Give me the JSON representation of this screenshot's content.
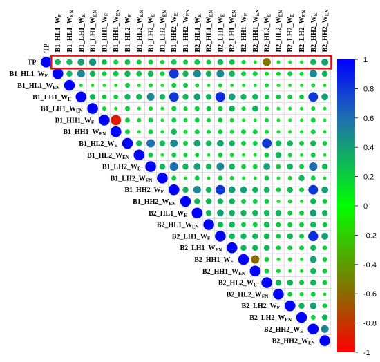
{
  "chart_data": {
    "type": "heatmap",
    "variables": [
      {
        "base": "TP",
        "sub": ""
      },
      {
        "base": "B1_HL1_W",
        "sub": "E"
      },
      {
        "base": "B1_HL1_W",
        "sub": "EN"
      },
      {
        "base": "B1_LH1_W",
        "sub": "E"
      },
      {
        "base": "B1_LH1_W",
        "sub": "EN"
      },
      {
        "base": "B1_HH1_W",
        "sub": "E"
      },
      {
        "base": "B1_HH1_W",
        "sub": "EN"
      },
      {
        "base": "B1_HL2_W",
        "sub": "E"
      },
      {
        "base": "B1_HL2_W",
        "sub": "EN"
      },
      {
        "base": "B1_LH2_W",
        "sub": "E"
      },
      {
        "base": "B1_LH2_W",
        "sub": "EN"
      },
      {
        "base": "B1_HH2_W",
        "sub": "E"
      },
      {
        "base": "B1_HH2_W",
        "sub": "EN"
      },
      {
        "base": "B2_HL1_W",
        "sub": "E"
      },
      {
        "base": "B2_HL1_W",
        "sub": "EN"
      },
      {
        "base": "B2_LH1_W",
        "sub": "E"
      },
      {
        "base": "B2_LH1_W",
        "sub": "EN"
      },
      {
        "base": "B2_HH1_W",
        "sub": "E"
      },
      {
        "base": "B2_HH1_W",
        "sub": "EN"
      },
      {
        "base": "B2_HL2_W",
        "sub": "E"
      },
      {
        "base": "B2_HL2_W",
        "sub": "EN"
      },
      {
        "base": "B2_LH2_W",
        "sub": "E"
      },
      {
        "base": "B2_LH2_W",
        "sub": "EN"
      },
      {
        "base": "B2_HH2_W",
        "sub": "E"
      },
      {
        "base": "B2_HH2_W",
        "sub": "EN"
      }
    ],
    "matrix": [
      [
        1,
        0.3,
        0.3,
        0.4,
        0.45,
        0.25,
        0.2,
        0.25,
        0.2,
        0.2,
        0.15,
        0.25,
        0.2,
        0.25,
        0.2,
        0.3,
        0.25,
        0.15,
        0.1,
        -0.55,
        0.1,
        0.1,
        0.1,
        0.3,
        0.4
      ],
      [
        0.3,
        1,
        0.3,
        0.5,
        0.3,
        0.2,
        0.25,
        0.3,
        0.25,
        0.3,
        0.2,
        0.8,
        0.3,
        0.5,
        0.3,
        0.5,
        0.3,
        0.2,
        0.2,
        0.15,
        0.15,
        0.2,
        0.15,
        0.5,
        0.3
      ],
      [
        0.3,
        0.3,
        1,
        0.1,
        0.1,
        0.1,
        0.1,
        0.2,
        0.1,
        0.15,
        0.1,
        0.2,
        0.2,
        0.15,
        0.1,
        0.15,
        0.1,
        0.1,
        0.1,
        0.15,
        0.1,
        0.1,
        0.1,
        0.15,
        0.1
      ],
      [
        0.4,
        0.5,
        0.1,
        1,
        0.3,
        0.2,
        0.2,
        0.3,
        0.3,
        0.5,
        0.3,
        0.8,
        0.3,
        0.4,
        0.3,
        0.85,
        0.4,
        0.3,
        0.3,
        0.2,
        0.2,
        0.2,
        0.2,
        0.8,
        0.4
      ],
      [
        0.45,
        0.3,
        0.1,
        0.3,
        1,
        0.15,
        0.1,
        0.2,
        0.1,
        0.15,
        0.1,
        0.2,
        0.15,
        0.2,
        0.2,
        0.2,
        0.3,
        0.15,
        0.3,
        0.15,
        0.1,
        0.1,
        0.1,
        0.15,
        0.1
      ],
      [
        0.25,
        0.2,
        0.1,
        0.2,
        0.15,
        1,
        -0.9,
        0.2,
        0.15,
        0.2,
        0.1,
        0.2,
        0.15,
        0.2,
        0.15,
        0.2,
        0.15,
        0.1,
        0.1,
        0.15,
        0.1,
        0.1,
        0.1,
        0.2,
        0.1
      ],
      [
        0.2,
        0.25,
        0.1,
        0.2,
        0.1,
        -0.9,
        1,
        0.2,
        0.1,
        0.2,
        0.1,
        0.3,
        0.15,
        0.2,
        0.15,
        0.2,
        0.15,
        0.2,
        0.2,
        0.15,
        0.1,
        0.1,
        0.1,
        0.2,
        0.1
      ],
      [
        0.25,
        0.3,
        0.2,
        0.3,
        0.2,
        0.2,
        0.2,
        1,
        0.3,
        0.6,
        0.3,
        0.5,
        0.2,
        0.4,
        0.3,
        0.4,
        0.3,
        0.2,
        0.2,
        0.8,
        0.3,
        0.3,
        0.2,
        0.3,
        0.2
      ],
      [
        0.2,
        0.25,
        0.1,
        0.3,
        0.1,
        0.15,
        0.1,
        0.3,
        1,
        0.2,
        0.1,
        0.2,
        0.15,
        0.15,
        0.1,
        0.2,
        0.15,
        0.1,
        0.1,
        0.2,
        0.3,
        0.15,
        0.1,
        0.2,
        0.1
      ],
      [
        0.2,
        0.3,
        0.15,
        0.5,
        0.15,
        0.2,
        0.2,
        0.6,
        0.2,
        1,
        0.3,
        0.6,
        0.3,
        0.4,
        0.3,
        0.5,
        0.3,
        0.2,
        0.2,
        0.4,
        0.2,
        0.3,
        0.2,
        0.6,
        0.3
      ],
      [
        0.15,
        0.2,
        0.1,
        0.3,
        0.1,
        0.1,
        0.1,
        0.3,
        0.1,
        0.3,
        1,
        0.2,
        0.1,
        0.2,
        0.1,
        0.2,
        0.15,
        0.1,
        0.1,
        0.2,
        0.1,
        0.15,
        0.3,
        0.2,
        0.1
      ],
      [
        0.25,
        0.8,
        0.2,
        0.8,
        0.2,
        0.2,
        0.3,
        0.5,
        0.2,
        0.6,
        0.2,
        1,
        0.3,
        0.5,
        0.3,
        0.8,
        0.4,
        0.4,
        0.3,
        0.3,
        0.2,
        0.3,
        0.2,
        0.8,
        0.4
      ],
      [
        0.2,
        0.3,
        0.2,
        0.3,
        0.15,
        0.15,
        0.15,
        0.2,
        0.15,
        0.3,
        0.1,
        0.3,
        1,
        0.3,
        0.3,
        0.3,
        0.3,
        0.2,
        0.2,
        0.2,
        0.1,
        0.15,
        0.1,
        0.3,
        0.2
      ],
      [
        0.25,
        0.5,
        0.15,
        0.4,
        0.2,
        0.2,
        0.2,
        0.4,
        0.15,
        0.4,
        0.2,
        0.5,
        0.3,
        1,
        0.3,
        0.4,
        0.3,
        0.3,
        0.3,
        0.3,
        0.3,
        0.2,
        0.2,
        0.4,
        0.3
      ],
      [
        0.2,
        0.3,
        0.1,
        0.3,
        0.2,
        0.15,
        0.15,
        0.3,
        0.1,
        0.3,
        0.1,
        0.3,
        0.3,
        0.3,
        1,
        0.3,
        0.3,
        0.2,
        0.2,
        0.3,
        0.2,
        0.2,
        0.2,
        0.3,
        0.2
      ],
      [
        0.3,
        0.5,
        0.15,
        0.85,
        0.2,
        0.2,
        0.2,
        0.4,
        0.2,
        0.5,
        0.2,
        0.8,
        0.3,
        0.4,
        0.3,
        1,
        0.3,
        0.3,
        0.3,
        0.3,
        0.2,
        0.3,
        0.2,
        0.85,
        0.4
      ],
      [
        0.25,
        0.3,
        0.1,
        0.4,
        0.3,
        0.15,
        0.15,
        0.3,
        0.15,
        0.3,
        0.15,
        0.4,
        0.3,
        0.3,
        0.3,
        0.3,
        1,
        0.3,
        0.3,
        0.3,
        0.2,
        0.2,
        0.2,
        0.3,
        0.2
      ],
      [
        0.15,
        0.2,
        0.1,
        0.3,
        0.15,
        0.1,
        0.2,
        0.2,
        0.1,
        0.2,
        0.1,
        0.4,
        0.2,
        0.3,
        0.2,
        0.3,
        0.3,
        1,
        -0.6,
        0.2,
        0.1,
        0.15,
        0.1,
        0.4,
        0.2
      ],
      [
        0.1,
        0.2,
        0.1,
        0.3,
        0.3,
        0.1,
        0.2,
        0.2,
        0.1,
        0.2,
        0.1,
        0.3,
        0.2,
        0.3,
        0.2,
        0.3,
        0.3,
        -0.6,
        1,
        0.2,
        0.15,
        0.1,
        0.1,
        0.3,
        0.2
      ],
      [
        -0.55,
        0.15,
        0.15,
        0.2,
        0.15,
        0.15,
        0.15,
        0.8,
        0.2,
        0.4,
        0.2,
        0.3,
        0.2,
        0.3,
        0.3,
        0.3,
        0.3,
        0.2,
        0.2,
        1,
        0.3,
        0.3,
        0.2,
        0.3,
        0.2
      ],
      [
        0.1,
        0.15,
        0.1,
        0.2,
        0.1,
        0.1,
        0.1,
        0.3,
        0.3,
        0.2,
        0.1,
        0.2,
        0.1,
        0.3,
        0.2,
        0.2,
        0.2,
        0.1,
        0.15,
        0.3,
        1,
        0.2,
        0.15,
        0.2,
        0.1
      ],
      [
        0.1,
        0.2,
        0.1,
        0.2,
        0.1,
        0.1,
        0.1,
        0.3,
        0.15,
        0.3,
        0.15,
        0.3,
        0.15,
        0.2,
        0.2,
        0.3,
        0.2,
        0.15,
        0.1,
        0.3,
        0.2,
        1,
        0.3,
        0.4,
        0.2
      ],
      [
        0.1,
        0.15,
        0.1,
        0.2,
        0.1,
        0.1,
        0.1,
        0.2,
        0.1,
        0.2,
        0.3,
        0.2,
        0.1,
        0.2,
        0.2,
        0.2,
        0.2,
        0.1,
        0.1,
        0.2,
        0.15,
        0.3,
        1,
        0.2,
        0.3
      ],
      [
        0.3,
        0.5,
        0.15,
        0.8,
        0.15,
        0.2,
        0.2,
        0.3,
        0.2,
        0.6,
        0.2,
        0.8,
        0.3,
        0.4,
        0.3,
        0.85,
        0.3,
        0.4,
        0.3,
        0.3,
        0.2,
        0.4,
        0.2,
        1,
        0.5
      ],
      [
        0.4,
        0.3,
        0.1,
        0.4,
        0.1,
        0.1,
        0.1,
        0.2,
        0.1,
        0.3,
        0.1,
        0.4,
        0.2,
        0.3,
        0.2,
        0.4,
        0.2,
        0.2,
        0.2,
        0.2,
        0.1,
        0.2,
        0.3,
        0.5,
        1
      ]
    ],
    "colorbar": {
      "ticks": [
        "1",
        "0.8",
        "0.6",
        "0.4",
        "0.2",
        "0",
        "-0.2",
        "-0.4",
        "-0.6",
        "-0.8",
        "-1"
      ],
      "range": [
        -1,
        1
      ],
      "colors": {
        "pos1": "#0000ff",
        "pos06": "#1f6fb0",
        "zero": "#00ff00",
        "neg06": "#8b6a00",
        "neg1": "#ff0000"
      }
    },
    "highlight": {
      "row": "TP",
      "color": "#e01010"
    }
  }
}
